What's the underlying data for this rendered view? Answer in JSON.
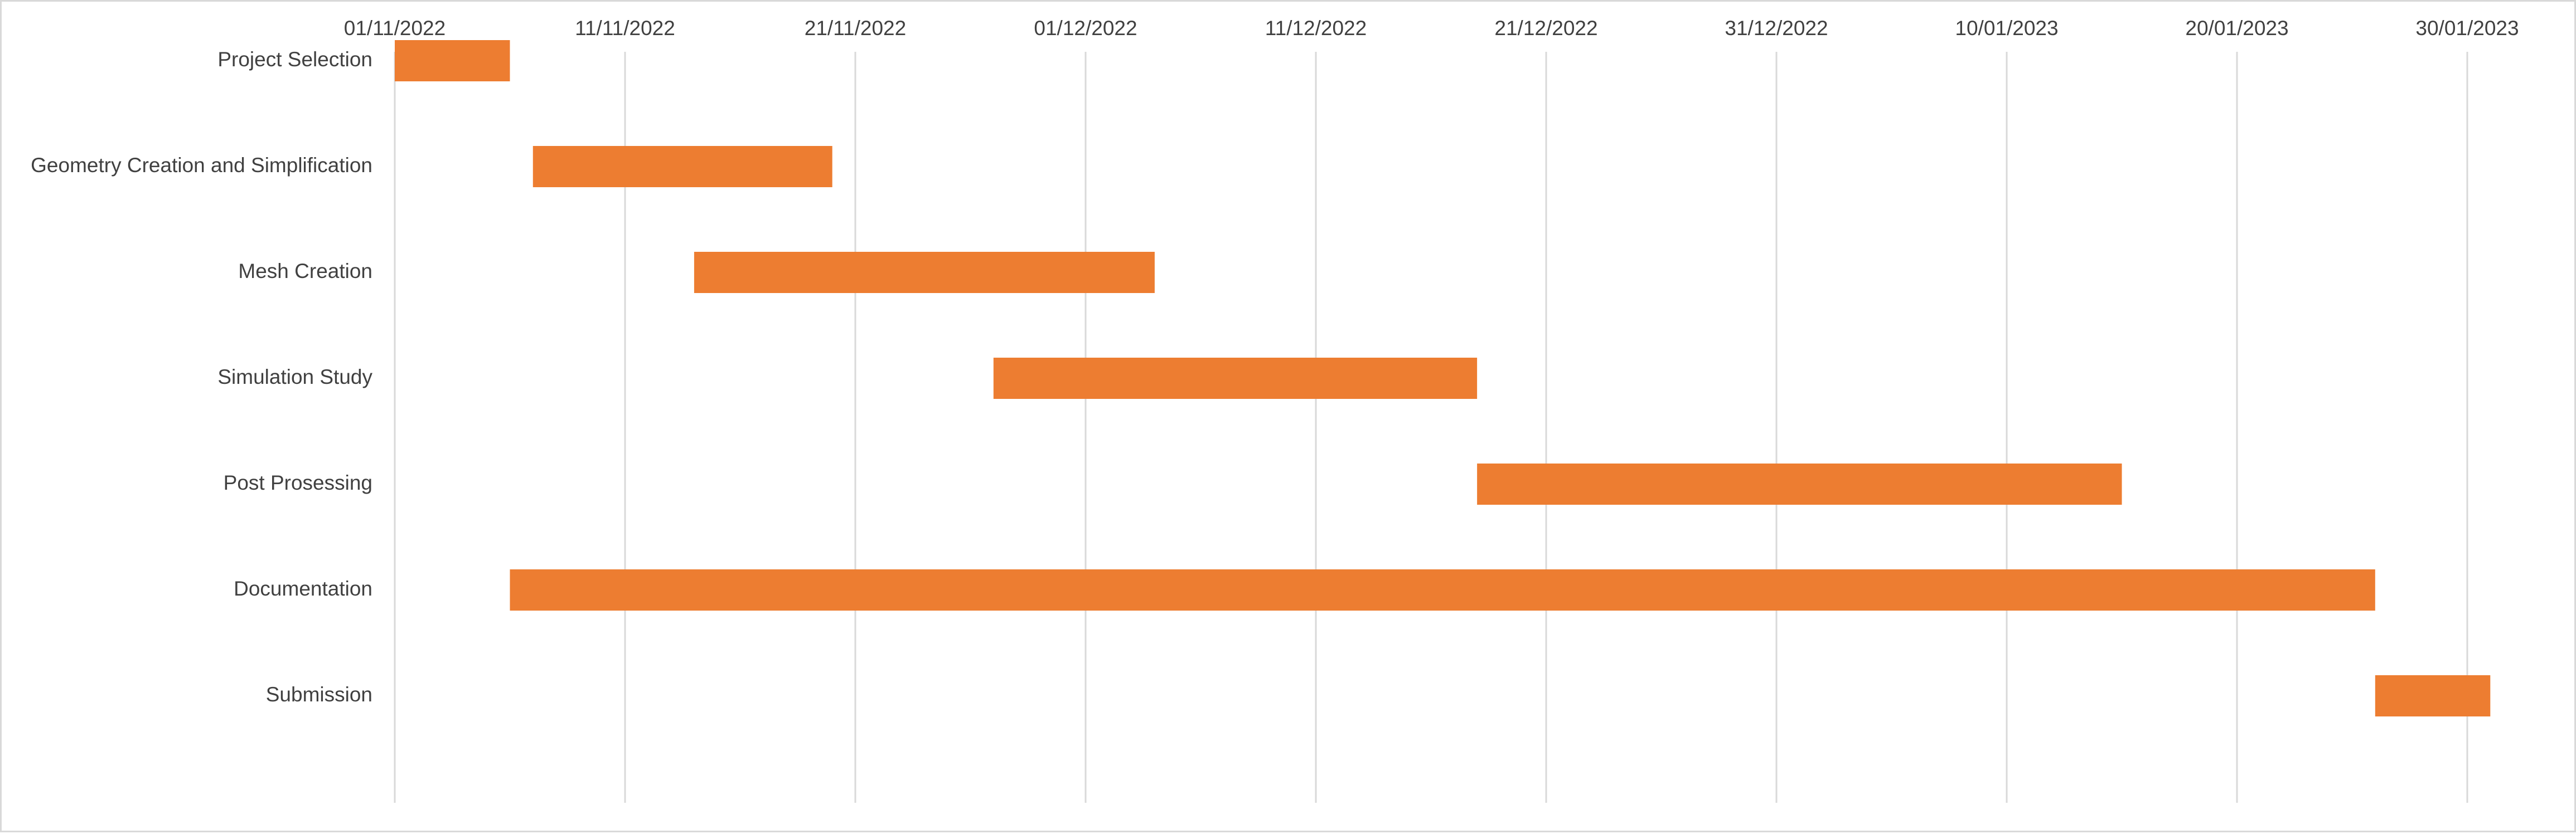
{
  "chart_data": {
    "type": "bar",
    "orientation": "horizontal",
    "title": "",
    "xlabel": "",
    "ylabel": "",
    "x_axis_position": "top",
    "grid": "vertical",
    "legend": "none",
    "xlim": [
      "2022-11-01",
      "2022-11-01",
      "2023-02-01"
    ],
    "x_ticks": [
      "01/11/2022",
      "11/11/2022",
      "21/11/2022",
      "01/12/2022",
      "11/12/2022",
      "21/12/2022",
      "31/12/2022",
      "10/01/2023",
      "20/01/2023",
      "30/01/2023"
    ],
    "x_tick_dates": [
      "2022-11-01",
      "2022-11-11",
      "2022-11-21",
      "2022-12-01",
      "2022-12-11",
      "2022-12-21",
      "2022-12-31",
      "2023-01-10",
      "2023-01-20",
      "2023-01-30"
    ],
    "categories": [
      "Project Selection",
      "Geometry Creation and Simplification",
      "Mesh Creation",
      "Simulation Study",
      "Post Prosessing",
      "Documentation",
      "Submission"
    ],
    "start": [
      "2022-11-01",
      "2022-11-07",
      "2022-11-14",
      "2022-11-27",
      "2022-12-18",
      "2022-11-06",
      "2023-01-26"
    ],
    "end": [
      "2022-11-06",
      "2022-11-20",
      "2022-12-04",
      "2022-12-18",
      "2023-01-15",
      "2023-01-26",
      "2023-01-31"
    ],
    "colors": {
      "bar": "#ED7D31",
      "grid": "#D9D9D9",
      "text": "#404040",
      "border": "#D9D9D9"
    }
  }
}
